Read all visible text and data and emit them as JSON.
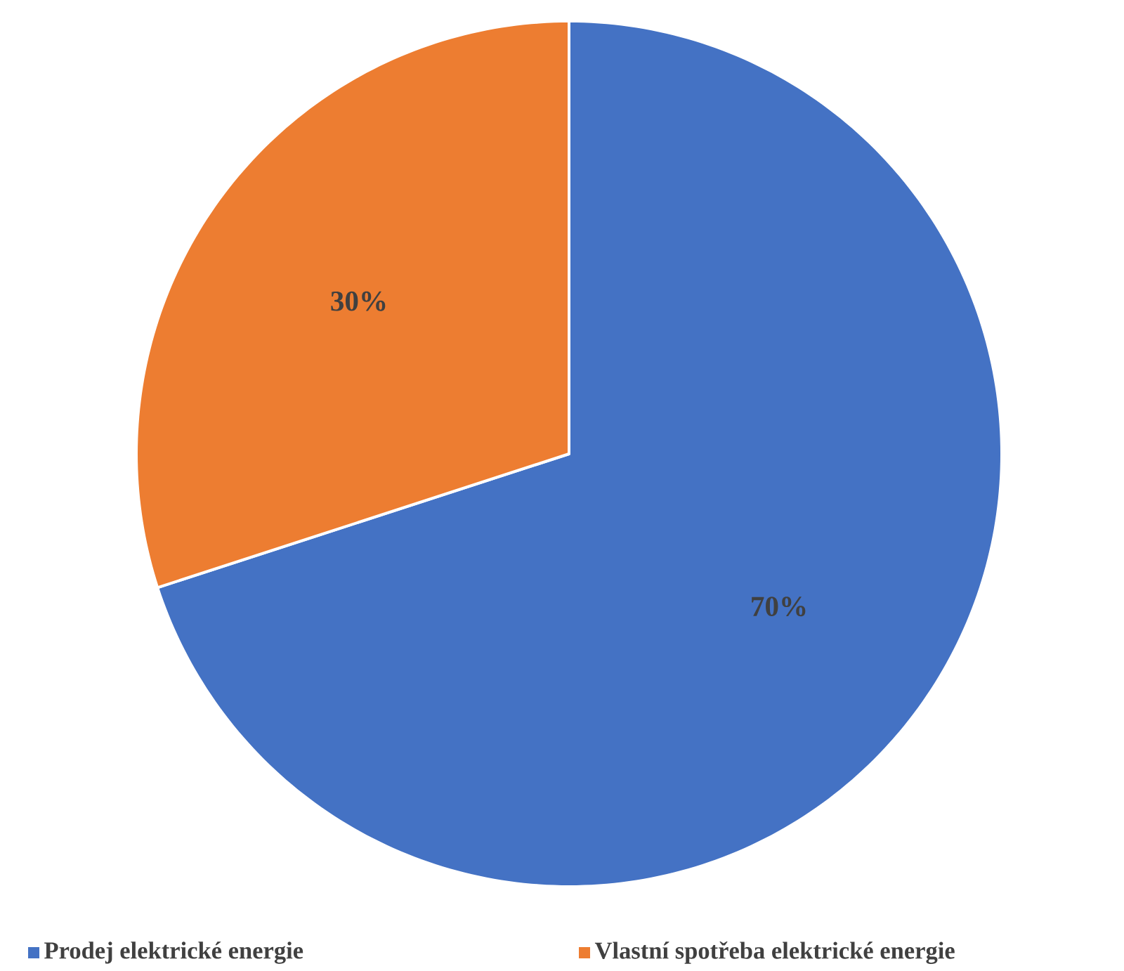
{
  "chart_data": {
    "type": "pie",
    "categories": [
      "Prodej elektrické energie",
      "Vlastní spotřeba elektrické energie"
    ],
    "values": [
      70,
      30
    ],
    "colors": [
      "#4472c4",
      "#ed7d31"
    ],
    "value_labels": [
      "70%",
      "30%"
    ],
    "legend": "bottom"
  }
}
